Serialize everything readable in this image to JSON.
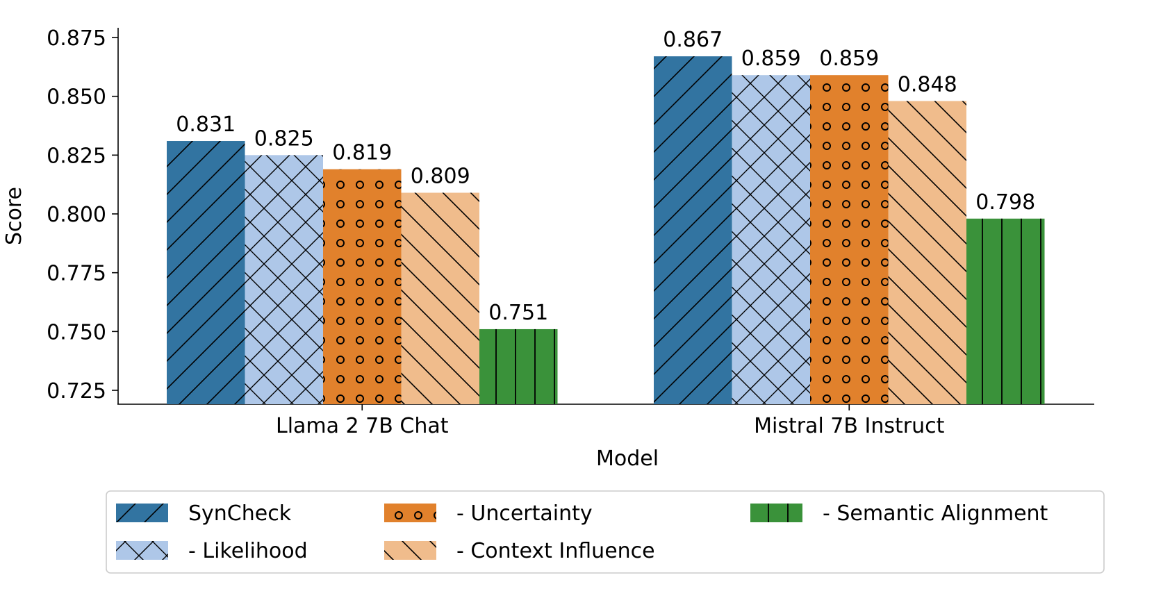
{
  "chart_data": {
    "type": "bar",
    "title": "",
    "xlabel": "Model",
    "ylabel": "Score",
    "ylim": [
      0.72,
      0.88
    ],
    "yticks": [
      "0.725",
      "0.750",
      "0.775",
      "0.800",
      "0.825",
      "0.850",
      "0.875"
    ],
    "categories": [
      "Llama 2 7B Chat",
      "Mistral 7B Instruct"
    ],
    "series": [
      {
        "name": "SynCheck",
        "values": [
          0.831,
          0.867
        ],
        "labels": [
          "0.831",
          "0.867"
        ],
        "color": "#3274a1",
        "hatch": "diagonal-forward"
      },
      {
        "name": "- Likelihood",
        "values": [
          0.825,
          0.859
        ],
        "labels": [
          "0.825",
          "0.859"
        ],
        "color": "#aec7e8",
        "hatch": "cross"
      },
      {
        "name": "- Uncertainty",
        "values": [
          0.819,
          0.859
        ],
        "labels": [
          "0.819",
          "0.859"
        ],
        "color": "#e1812c",
        "hatch": "circles"
      },
      {
        "name": "- Context Influence",
        "values": [
          0.809,
          0.848
        ],
        "labels": [
          "0.809",
          "0.848"
        ],
        "color": "#f0bc8c",
        "hatch": "diagonal-back"
      },
      {
        "name": "- Semantic Alignment",
        "values": [
          0.751,
          0.798
        ],
        "labels": [
          "0.751",
          "0.798"
        ],
        "color": "#3a923a",
        "hatch": "vertical"
      }
    ],
    "legend": {
      "position": "bottom-center",
      "columns": 3
    },
    "grid": false
  }
}
